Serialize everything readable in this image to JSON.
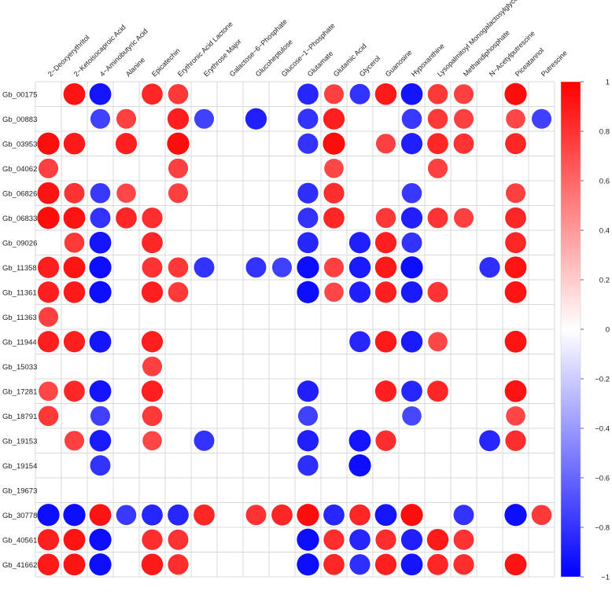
{
  "chart_data": {
    "type": "heatmap",
    "subtype": "correlation-circle-plot",
    "columns": [
      "2−Deoxyerythritol",
      "2−Ketoisocaproic Acid",
      "4−Aminobutyric Acid",
      "Alanine",
      "Epicatechin",
      "Erythronic Acid Lactone",
      "Erythrose Major",
      "Galactose−6−Phosphate",
      "Glucoheptulose",
      "Glucose−1−Phosphate",
      "Glutamate",
      "Glutamic Acid",
      "Glycerol",
      "Guanosine",
      "Hypoxanthine",
      "Lysopalmitoyl Monogalactosylglycerol",
      "Methandiphosphate",
      "N−Acetylputrescine",
      "Piceatannol",
      "Putrescine"
    ],
    "rows": [
      "Gb_00175",
      "Gb_00883",
      "Gb_03953",
      "Gb_04062",
      "Gb_06826",
      "Gb_06833",
      "Gb_09026",
      "Gb_11358",
      "Gb_11361",
      "Gb_11363",
      "Gb_11944",
      "Gb_15033",
      "Gb_17281",
      "Gb_18791",
      "Gb_19153",
      "Gb_19154",
      "Gb_19673",
      "Gb_30778",
      "Gb_40561",
      "Gb_41662"
    ],
    "values": [
      [
        null,
        0.92,
        -0.92,
        null,
        0.85,
        0.78,
        null,
        null,
        null,
        null,
        -0.85,
        0.75,
        -0.8,
        0.9,
        -0.92,
        0.78,
        0.75,
        null,
        0.95,
        null
      ],
      [
        null,
        null,
        -0.75,
        0.75,
        null,
        0.88,
        -0.75,
        null,
        -0.88,
        null,
        -0.8,
        0.88,
        null,
        null,
        -0.78,
        0.78,
        0.75,
        null,
        0.72,
        -0.75
      ],
      [
        0.95,
        0.9,
        null,
        0.88,
        null,
        0.95,
        null,
        null,
        null,
        null,
        -0.8,
        0.95,
        null,
        0.75,
        -0.88,
        0.85,
        0.8,
        null,
        0.85,
        null
      ],
      [
        0.75,
        null,
        null,
        null,
        null,
        0.75,
        null,
        null,
        null,
        null,
        null,
        0.72,
        null,
        null,
        null,
        0.75,
        null,
        null,
        null,
        null
      ],
      [
        0.92,
        0.8,
        -0.78,
        0.72,
        null,
        0.75,
        null,
        null,
        null,
        null,
        -0.82,
        0.82,
        null,
        null,
        -0.78,
        null,
        null,
        null,
        0.75,
        null
      ],
      [
        0.95,
        0.92,
        -0.8,
        0.85,
        0.82,
        null,
        null,
        null,
        null,
        null,
        -0.8,
        0.85,
        null,
        0.78,
        -0.88,
        0.8,
        0.75,
        null,
        0.85,
        null
      ],
      [
        null,
        0.78,
        -0.92,
        null,
        0.85,
        null,
        null,
        null,
        null,
        null,
        -0.85,
        null,
        -0.88,
        0.88,
        -0.8,
        null,
        null,
        null,
        0.85,
        null
      ],
      [
        0.88,
        0.92,
        -0.95,
        null,
        0.8,
        0.78,
        -0.8,
        null,
        -0.8,
        -0.75,
        -0.95,
        0.75,
        -0.9,
        0.9,
        -0.95,
        null,
        null,
        -0.82,
        0.92,
        null
      ],
      [
        0.88,
        0.9,
        -0.95,
        null,
        0.88,
        0.78,
        null,
        null,
        null,
        null,
        -0.95,
        0.72,
        -0.88,
        0.88,
        -0.9,
        0.8,
        null,
        null,
        0.92,
        null
      ],
      [
        0.75,
        null,
        null,
        null,
        null,
        null,
        null,
        null,
        null,
        null,
        null,
        null,
        null,
        null,
        null,
        null,
        null,
        null,
        null,
        null
      ],
      [
        0.88,
        0.88,
        -0.92,
        null,
        0.88,
        null,
        null,
        null,
        null,
        null,
        null,
        null,
        -0.85,
        0.9,
        -0.9,
        0.72,
        null,
        null,
        0.92,
        null
      ],
      [
        null,
        null,
        null,
        null,
        0.75,
        null,
        null,
        null,
        null,
        null,
        null,
        null,
        null,
        null,
        null,
        null,
        null,
        null,
        null,
        null
      ],
      [
        0.72,
        0.85,
        -0.92,
        null,
        0.88,
        null,
        null,
        null,
        null,
        null,
        -0.88,
        null,
        null,
        0.88,
        -0.85,
        0.85,
        null,
        null,
        0.92,
        null
      ],
      [
        0.78,
        null,
        -0.75,
        null,
        0.78,
        null,
        null,
        null,
        null,
        null,
        -0.75,
        null,
        null,
        null,
        -0.72,
        null,
        null,
        null,
        0.72,
        null
      ],
      [
        null,
        0.75,
        -0.9,
        null,
        0.72,
        null,
        -0.8,
        null,
        null,
        null,
        -0.88,
        null,
        -0.92,
        0.82,
        null,
        null,
        null,
        -0.85,
        0.82,
        null
      ],
      [
        null,
        null,
        -0.8,
        null,
        null,
        null,
        null,
        null,
        null,
        null,
        -0.82,
        null,
        -0.95,
        null,
        null,
        null,
        null,
        null,
        null,
        null
      ],
      [
        null,
        null,
        null,
        null,
        null,
        null,
        null,
        null,
        null,
        null,
        null,
        null,
        null,
        null,
        null,
        null,
        null,
        null,
        null,
        null
      ],
      [
        -0.95,
        -0.95,
        0.92,
        -0.78,
        -0.85,
        -0.85,
        0.85,
        null,
        0.8,
        0.85,
        0.95,
        -0.85,
        0.85,
        -0.92,
        0.95,
        null,
        -0.8,
        null,
        -0.95,
        0.78
      ],
      [
        0.88,
        0.92,
        -0.95,
        null,
        0.82,
        0.8,
        null,
        null,
        null,
        null,
        -0.95,
        0.82,
        -0.85,
        0.82,
        -0.88,
        0.9,
        0.8,
        null,
        null,
        null
      ],
      [
        0.9,
        0.92,
        -0.95,
        null,
        0.9,
        0.82,
        null,
        null,
        null,
        null,
        -0.95,
        0.85,
        -0.82,
        0.88,
        -0.92,
        0.85,
        0.82,
        null,
        0.92,
        null
      ]
    ],
    "colorbar": {
      "range": [
        -1,
        1
      ],
      "ticks": [
        "1",
        "0.8",
        "0.6",
        "0.4",
        "0.2",
        "0",
        "−0.2",
        "−0.4",
        "−0.6",
        "−0.8",
        "−1"
      ],
      "tick_values": [
        1,
        0.8,
        0.6,
        0.4,
        0.2,
        0,
        -0.2,
        -0.4,
        -0.6,
        -0.8,
        -1
      ],
      "colors": {
        "low": "#0000ff",
        "mid": "#ffffff",
        "high": "#ff0000"
      }
    },
    "grid": true,
    "legend_position": "right"
  }
}
